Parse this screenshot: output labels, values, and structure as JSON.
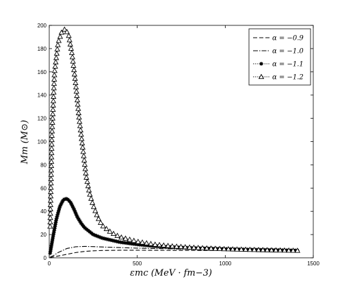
{
  "chart_data": {
    "type": "line",
    "title": "",
    "xlabel": "εmc (MeV · fm−3)",
    "ylabel": "Mm (M⊙)",
    "xlim": [
      0,
      1500
    ],
    "ylim": [
      0,
      200
    ],
    "xticks": [
      0,
      500,
      1000,
      1500
    ],
    "yticks": [
      0,
      20,
      40,
      60,
      80,
      100,
      120,
      140,
      160,
      180,
      200
    ],
    "grid": false,
    "legend_position": "top-right",
    "series": [
      {
        "name": "α = −0.9",
        "style": "dashed",
        "marker": "none",
        "x": [
          5,
          25,
          50,
          100,
          150,
          200,
          250,
          300,
          400,
          500,
          700,
          900,
          1100,
          1300,
          1410
        ],
        "y": [
          0.3,
          0.8,
          1.5,
          3,
          4.5,
          5.5,
          6,
          6.3,
          6.5,
          6.5,
          6.4,
          6.3,
          6.2,
          6.1,
          6
        ]
      },
      {
        "name": "α = −1.0",
        "style": "dashdot",
        "marker": "none",
        "x": [
          5,
          25,
          50,
          100,
          150,
          200,
          250,
          300,
          400,
          500,
          700,
          900,
          1100,
          1300,
          1410
        ],
        "y": [
          0.5,
          2,
          4.5,
          8,
          9.5,
          9.8,
          9.6,
          9.3,
          8.8,
          8.3,
          7.7,
          7.2,
          6.8,
          6.5,
          6.3
        ]
      },
      {
        "name": "α = −1.1",
        "style": "dotted",
        "marker": "star",
        "x": [
          5,
          20,
          40,
          60,
          80,
          100,
          120,
          140,
          160,
          180,
          200,
          250,
          300,
          400,
          500,
          600,
          700,
          800,
          900,
          1000,
          1100,
          1200,
          1300,
          1410
        ],
        "y": [
          4,
          17,
          33,
          44,
          50,
          51,
          48,
          42,
          35,
          30,
          26,
          20,
          17,
          13.5,
          11.5,
          10,
          9.2,
          8.5,
          8,
          7.6,
          7.2,
          6.9,
          6.6,
          6.3
        ]
      },
      {
        "name": "α = −1.2",
        "style": "dotted",
        "marker": "triangle",
        "x": [
          5,
          15,
          30,
          50,
          70,
          90,
          110,
          130,
          150,
          170,
          190,
          210,
          230,
          250,
          275,
          300,
          350,
          400,
          500,
          600,
          700,
          800,
          900,
          1000,
          1200,
          1410
        ],
        "y": [
          27,
          105,
          160,
          185,
          194,
          197,
          192,
          175,
          150,
          120,
          95,
          70,
          55,
          45,
          35,
          28,
          22,
          18,
          14,
          11.5,
          10,
          9,
          8.2,
          7.6,
          6.8,
          6.2
        ]
      }
    ]
  }
}
